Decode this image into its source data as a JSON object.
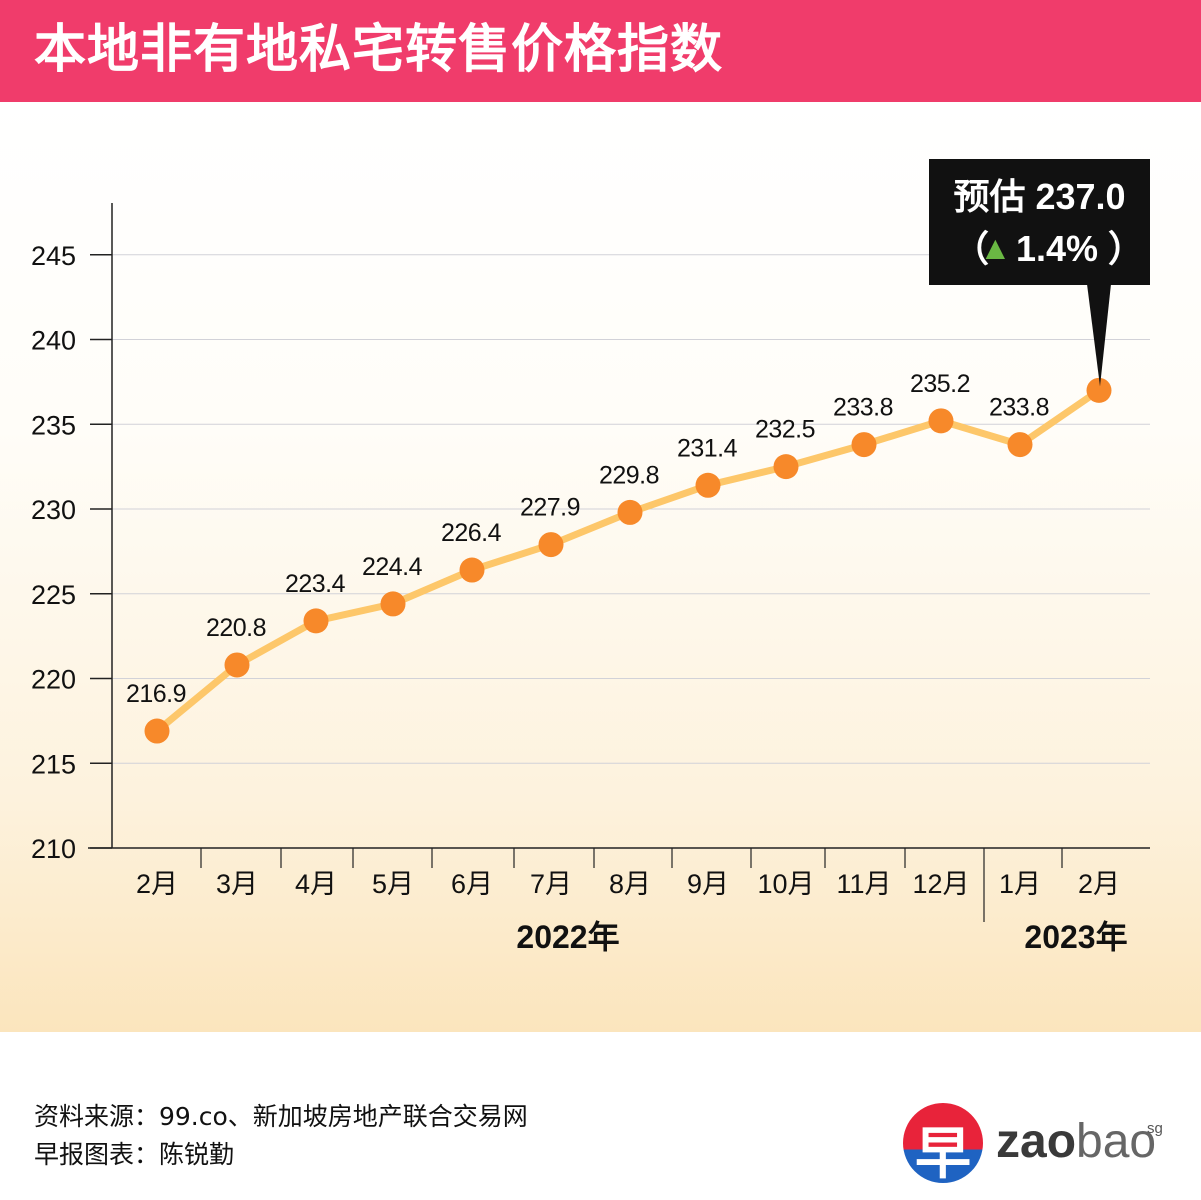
{
  "title": "本地非有地私宅转售价格指数",
  "chart_data": {
    "type": "line",
    "categories": [
      "2月",
      "3月",
      "4月",
      "5月",
      "6月",
      "7月",
      "8月",
      "9月",
      "10月",
      "11月",
      "12月",
      "1月",
      "2月"
    ],
    "values": [
      216.9,
      220.8,
      223.4,
      224.4,
      226.4,
      227.9,
      229.8,
      231.4,
      232.5,
      233.8,
      235.2,
      233.8,
      237.0
    ],
    "data_labels": [
      "216.9",
      "220.8",
      "223.4",
      "224.4",
      "226.4",
      "227.9",
      "229.8",
      "231.4",
      "232.5",
      "233.8",
      "235.2",
      "233.8",
      ""
    ],
    "year_groups": [
      {
        "label": "2022年",
        "from": 0,
        "to": 10
      },
      {
        "label": "2023年",
        "from": 11,
        "to": 12
      }
    ],
    "y_ticks": [
      210,
      215,
      220,
      225,
      230,
      235,
      240,
      245
    ],
    "ylim": [
      210,
      248
    ],
    "grid": true,
    "line_color": "#fdc76a",
    "marker_color": "#f7892a",
    "callout": {
      "line1": "预估 237.0",
      "open": "（",
      "arrow": "▲",
      "change": "1.4%",
      "close": "）",
      "arrow_color": "#6ab843"
    }
  },
  "footer": {
    "source": "资料来源：99.co、新加坡房地产联合交易网",
    "credit": "早报图表：陈锐勤"
  },
  "logo": {
    "glyph": "早",
    "text_a": "zao",
    "text_b": "bao",
    "sup": "sg"
  }
}
